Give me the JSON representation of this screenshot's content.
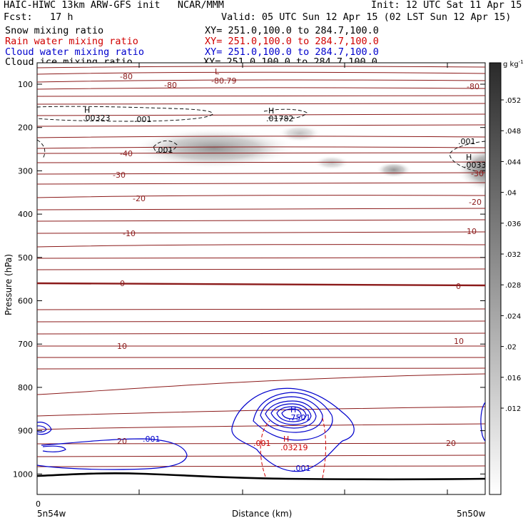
{
  "header": {
    "title": "HAIC-HIWC 13km ARW-GFS init   NCAR/MMM",
    "init": "Init: 12 UTC Sat 11 Apr 15",
    "fcst": "Fcst:   17 h",
    "valid": "Valid: 05 UTC Sun 12 Apr 15 (02 LST Sun 12 Apr 15)"
  },
  "legend": [
    {
      "label": "Snow mixing ratio",
      "xy": "XY= 251.0,100.0 to 284.7,100.0",
      "color": "#000000"
    },
    {
      "label": "Rain water mixing ratio",
      "xy": "XY= 251.0,100.0 to 284.7,100.0",
      "color": "#d00000"
    },
    {
      "label": "Cloud water mixing ratio",
      "xy": "XY= 251.0,100.0 to 284.7,100.0",
      "color": "#0000cc"
    },
    {
      "label": "Cloud ice mixing ratio",
      "xy": "XY= 251.0,100.0 to 284.7,100.0",
      "color": "#000000"
    }
  ],
  "chart_data": {
    "type": "contour",
    "ylabel": "Pressure (hPa)",
    "xlabel": "Distance (km)",
    "x_start_tick": "0",
    "x_left_label": "5n54w",
    "x_right_label": "5n50w",
    "y_ticks": [
      100,
      200,
      300,
      400,
      500,
      600,
      700,
      800,
      900,
      1000
    ],
    "ylim": [
      1050,
      50
    ],
    "colorbar": {
      "unit": "g kg",
      "unit_sup": "-1",
      "ticks": [
        ".052",
        ".048",
        ".044",
        ".04",
        ".036",
        ".032",
        ".028",
        ".024",
        ".02",
        ".016",
        ".012"
      ]
    },
    "temperature_labels": [
      "-80",
      "-80",
      "-80",
      "-40",
      "-30",
      "-20",
      "-20",
      "-10",
      "-10",
      "0",
      "0",
      "10",
      "10",
      "20",
      "20",
      "-30"
    ],
    "extrema": [
      {
        "type": "L",
        "value": "-80.79",
        "color": "#8b1a1a"
      },
      {
        "type": "H",
        "value": ".00323",
        "color": "#000000"
      },
      {
        "type": "H",
        "value": ".01782",
        "color": "#000000"
      },
      {
        "type": "H",
        "value": ".0033",
        "color": "#000000"
      },
      {
        "type": "H",
        "value": ".7501",
        "color": "#0000cc"
      },
      {
        "type": "H",
        "value": ".03219",
        "color": "#d00000"
      }
    ],
    "other_labels": [
      {
        "text": ".001",
        "color": "#000000"
      },
      {
        "text": ".001",
        "color": "#000000"
      },
      {
        "text": ".001",
        "color": "#000000"
      },
      {
        "text": ".001",
        "color": "#0000cc"
      },
      {
        "text": ".001",
        "color": "#0000cc"
      },
      {
        "text": ".001",
        "color": "#d00000"
      }
    ]
  }
}
